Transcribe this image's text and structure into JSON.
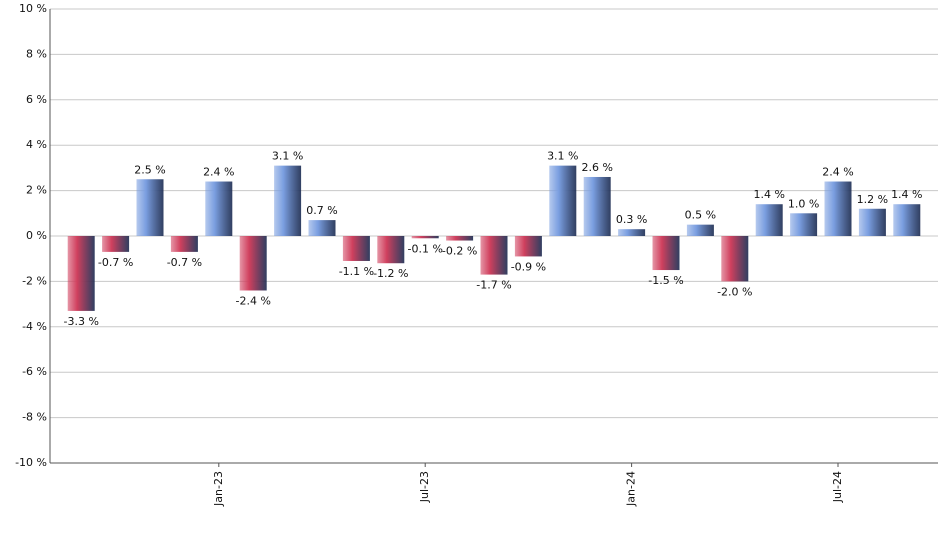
{
  "chart_data": {
    "type": "bar",
    "categories": [
      null,
      null,
      null,
      null,
      "Jan-23",
      null,
      null,
      null,
      null,
      null,
      "Jul-23",
      null,
      null,
      null,
      null,
      null,
      "Jan-24",
      null,
      null,
      null,
      null,
      null,
      "Jul-24",
      null,
      null
    ],
    "values": [
      -3.3,
      -0.7,
      2.5,
      -0.7,
      2.4,
      -2.4,
      3.1,
      0.7,
      -1.1,
      -1.2,
      -0.1,
      -0.2,
      -1.7,
      -0.9,
      3.1,
      2.6,
      0.3,
      -1.5,
      0.5,
      -2.0,
      1.4,
      1.0,
      2.4,
      1.2,
      1.4
    ],
    "value_labels": [
      "-3.3 %",
      "-0.7 %",
      "2.5 %",
      "-0.7 %",
      "2.4 %",
      "-2.4 %",
      "3.1 %",
      "0.7 %",
      "-1.1 %",
      "-1.2 %",
      "-0.1 %",
      "-0.2 %",
      "-1.7 %",
      "-0.9 %",
      "3.1 %",
      "2.6 %",
      "0.3 %",
      "-1.5 %",
      "0.5 %",
      "-2.0 %",
      "1.4 %",
      "1.0 %",
      "2.4 %",
      "1.2 %",
      "1.4 %"
    ],
    "positive_color": "#7a9ee0",
    "negative_color": "#d0405e",
    "ylim": [
      -10,
      10
    ],
    "yticks": [
      {
        "value": -10,
        "label": "-10 %"
      },
      {
        "value": -8,
        "label": "-8 %"
      },
      {
        "value": -6,
        "label": "-6 %"
      },
      {
        "value": -4,
        "label": "-4 %"
      },
      {
        "value": -2,
        "label": "-2 %"
      },
      {
        "value": 0,
        "label": "0 %"
      },
      {
        "value": 2,
        "label": "2 %"
      },
      {
        "value": 4,
        "label": "4 %"
      },
      {
        "value": 6,
        "label": "6 %"
      },
      {
        "value": 8,
        "label": "8 %"
      },
      {
        "value": 10,
        "label": "10 %"
      }
    ],
    "grid": true
  }
}
